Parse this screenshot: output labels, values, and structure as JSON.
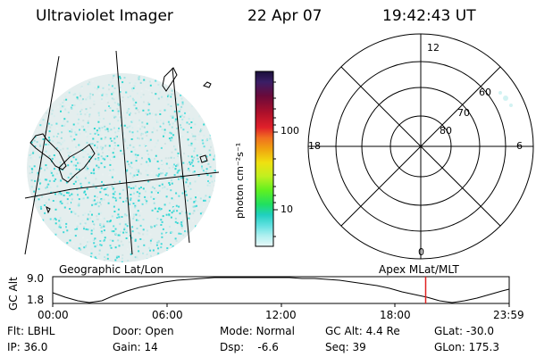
{
  "header": {
    "instrument": "Ultraviolet Imager",
    "date": "22 Apr 07",
    "time": "19:42:43 UT"
  },
  "colorbar": {
    "unit_label": "photon cm⁻²s⁻¹",
    "ticks": [
      "100",
      "10"
    ],
    "colors": [
      "#1a0f3a",
      "#3b1e66",
      "#6a0a3a",
      "#b0102a",
      "#e0202a",
      "#f07020",
      "#f0a010",
      "#f0e010",
      "#c0f020",
      "#60f020",
      "#20e060",
      "#20d0c0",
      "#60e0e0",
      "#b0f0f0",
      "#e8f8f8"
    ]
  },
  "polar_plot": {
    "mlt_labels": [
      "12",
      "18",
      "6",
      "0"
    ],
    "lat_labels": [
      "60",
      "70",
      "80"
    ]
  },
  "coordinate_labels": {
    "left": "Geographic Lat/Lon",
    "right": "Apex MLat/MLT"
  },
  "altitude_plot": {
    "y_axis_label": "GC Alt",
    "y_ticks": [
      "9.0",
      "1.8"
    ],
    "x_ticks": [
      "00:00",
      "06:00",
      "12:00",
      "18:00",
      "23:59"
    ],
    "current_time_fraction": 0.817,
    "marker_color": "#e02020"
  },
  "status": {
    "row1": [
      {
        "key": "Flt:",
        "value": "LBHL"
      },
      {
        "key": "Door:",
        "value": "Open"
      },
      {
        "key": "Mode:",
        "value": "Normal"
      },
      {
        "key": "GC Alt:",
        "value": "4.4 Re"
      },
      {
        "key": "GLat:",
        "value": "-30.0"
      }
    ],
    "row2": [
      {
        "key": "IP:",
        "value": "36.0"
      },
      {
        "key": "Gain:",
        "value": "14"
      },
      {
        "key": "Dsp:",
        "value": "-6.6"
      },
      {
        "key": "Seq:",
        "value": "39"
      },
      {
        "key": "GLon:",
        "value": "175.3"
      }
    ]
  }
}
